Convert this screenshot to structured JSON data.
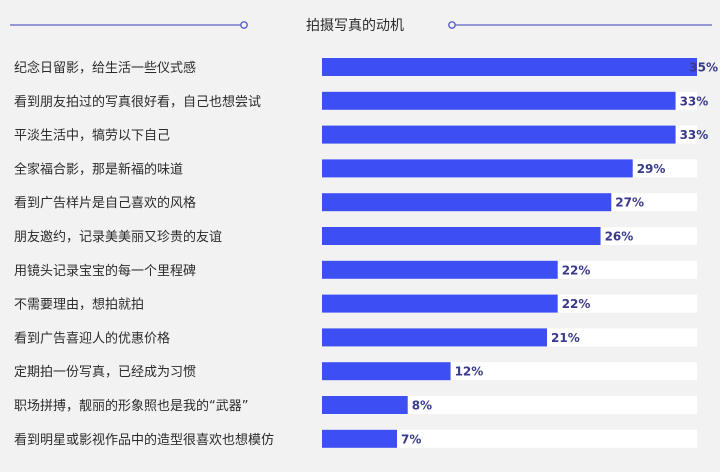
{
  "chart_data": {
    "type": "bar",
    "orientation": "horizontal",
    "title": "拍摄写真的动机",
    "value_suffix": "%",
    "xlim": [
      0,
      35
    ],
    "grid": false,
    "legend": "none",
    "categories": [
      "纪念日留影，给生活一些仪式感",
      "看到朋友拍过的写真很好看，自己也想尝试",
      "平淡生活中，犒劳以下自己",
      "全家福合影，那是新福的味道",
      "看到广告样片是自己喜欢的风格",
      "朋友邀约，记录美美丽又珍贵的友谊",
      "用镜头记录宝宝的每一个里程碑",
      "不需要理由，想拍就拍",
      "看到广告喜迎人的优惠价格",
      "定期拍一份写真，已经成为习惯",
      "职场拼搏，靓丽的形象照也是我的“武器”",
      "看到明星或影视作品中的造型很喜欢也想模仿"
    ],
    "values": [
      35,
      33,
      33,
      29,
      27,
      26,
      22,
      22,
      21,
      12,
      8,
      7
    ],
    "data_labels": [
      "35%",
      "33%",
      "33%",
      "29%",
      "27%",
      "26%",
      "22%",
      "22%",
      "21%",
      "12%",
      "8%",
      "7%"
    ]
  },
  "colors": {
    "background": "#f2f2f2",
    "bar": "#3d4ef2",
    "track": "#ffffff",
    "label": "#2b2b2b",
    "value_label": "#3a3a8c",
    "title_line": "#5b5fc7"
  }
}
